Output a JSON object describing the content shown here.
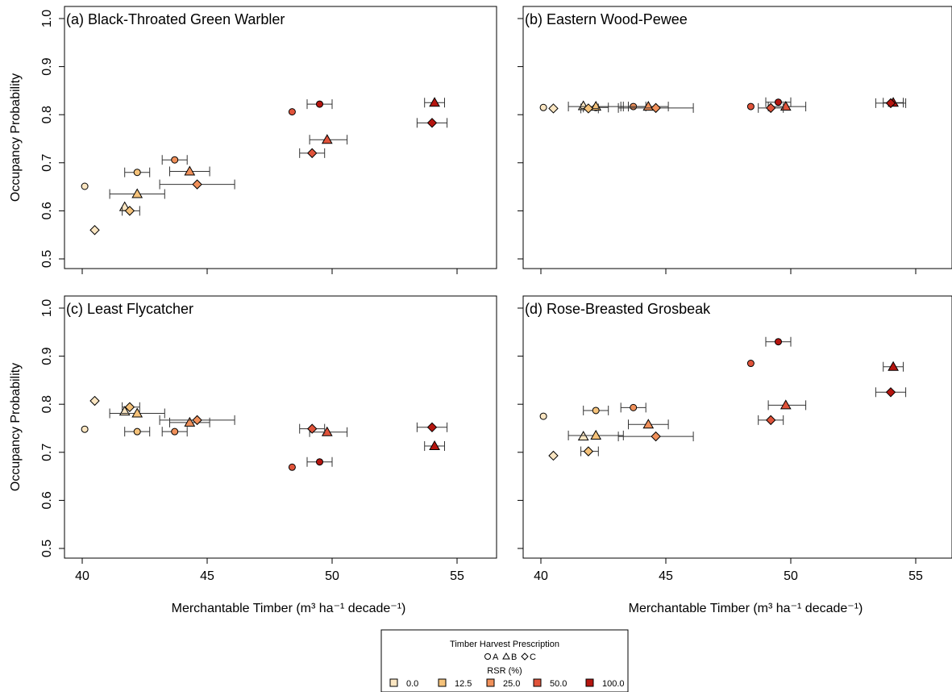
{
  "colors": {
    "rsr_0": "#fbe6c2",
    "rsr_12_5": "#f5c27a",
    "rsr_25": "#f0905a",
    "rsr_50": "#e0533a",
    "rsr_100": "#b5150f"
  },
  "legend": {
    "title": "Timber Harvest Prescription",
    "shapes": [
      {
        "symbol": "circle",
        "label": "A"
      },
      {
        "symbol": "triangle",
        "label": "B"
      },
      {
        "symbol": "diamond",
        "label": "C"
      }
    ],
    "rsr_title": "RSR (%)",
    "rsr": [
      {
        "label": "0.0",
        "color": "#fbe6c2"
      },
      {
        "label": "12.5",
        "color": "#f5c27a"
      },
      {
        "label": "25.0",
        "color": "#f0905a"
      },
      {
        "label": "50.0",
        "color": "#e0533a"
      },
      {
        "label": "100.0",
        "color": "#b5150f"
      }
    ]
  },
  "chart_data": [
    {
      "type": "scatter",
      "title": "(a) Black-Throated Green Warbler",
      "xlabel": "Merchantable Timber (m³ ha⁻¹ decade⁻¹)",
      "ylabel": "Occupancy Probability",
      "xlim": [
        39,
        56.5
      ],
      "ylim": [
        0.5,
        1.0
      ],
      "xticks": [
        "40",
        "45",
        "50",
        "55"
      ],
      "yticks": [
        "0.5",
        "0.6",
        "0.7",
        "0.8",
        "0.9",
        "1.0"
      ],
      "points": [
        {
          "presc": "A",
          "rsr": "0.0",
          "x": 40.1,
          "y": 0.651,
          "xlo": null,
          "xhi": null
        },
        {
          "presc": "A",
          "rsr": "12.5",
          "x": 42.2,
          "y": 0.68,
          "xlo": 41.7,
          "xhi": 42.7
        },
        {
          "presc": "A",
          "rsr": "25.0",
          "x": 43.7,
          "y": 0.706,
          "xlo": 43.2,
          "xhi": 44.2
        },
        {
          "presc": "A",
          "rsr": "50.0",
          "x": 48.4,
          "y": 0.806,
          "xlo": null,
          "xhi": null
        },
        {
          "presc": "A",
          "rsr": "100.0",
          "x": 49.5,
          "y": 0.822,
          "xlo": 49.0,
          "xhi": 50.0
        },
        {
          "presc": "B",
          "rsr": "0.0",
          "x": 41.7,
          "y": 0.608,
          "xlo": null,
          "xhi": null
        },
        {
          "presc": "B",
          "rsr": "12.5",
          "x": 42.2,
          "y": 0.635,
          "xlo": 41.1,
          "xhi": 43.3
        },
        {
          "presc": "B",
          "rsr": "25.0",
          "x": 44.3,
          "y": 0.682,
          "xlo": 43.5,
          "xhi": 45.1
        },
        {
          "presc": "B",
          "rsr": "50.0",
          "x": 49.8,
          "y": 0.748,
          "xlo": 49.1,
          "xhi": 50.6
        },
        {
          "presc": "B",
          "rsr": "100.0",
          "x": 54.1,
          "y": 0.825,
          "xlo": 53.7,
          "xhi": 54.5
        },
        {
          "presc": "C",
          "rsr": "0.0",
          "x": 40.5,
          "y": 0.56,
          "xlo": null,
          "xhi": null
        },
        {
          "presc": "C",
          "rsr": "12.5",
          "x": 41.9,
          "y": 0.6,
          "xlo": 41.6,
          "xhi": 42.3
        },
        {
          "presc": "C",
          "rsr": "25.0",
          "x": 44.6,
          "y": 0.655,
          "xlo": 43.1,
          "xhi": 46.1
        },
        {
          "presc": "C",
          "rsr": "50.0",
          "x": 49.2,
          "y": 0.72,
          "xlo": 48.7,
          "xhi": 49.7
        },
        {
          "presc": "C",
          "rsr": "100.0",
          "x": 54.0,
          "y": 0.783,
          "xlo": 53.4,
          "xhi": 54.6
        }
      ]
    },
    {
      "type": "scatter",
      "title": "(b) Eastern Wood-Pewee",
      "xlabel": "Merchantable Timber (m³ ha⁻¹ decade⁻¹)",
      "ylabel": "",
      "xlim": [
        39,
        56.5
      ],
      "ylim": [
        0.5,
        1.0
      ],
      "xticks": [
        "40",
        "45",
        "50",
        "55"
      ],
      "yticks": [],
      "points": [
        {
          "presc": "A",
          "rsr": "0.0",
          "x": 40.1,
          "y": 0.815,
          "xlo": null,
          "xhi": null
        },
        {
          "presc": "A",
          "rsr": "12.5",
          "x": 42.2,
          "y": 0.815,
          "xlo": 41.7,
          "xhi": 42.7
        },
        {
          "presc": "A",
          "rsr": "25.0",
          "x": 43.7,
          "y": 0.817,
          "xlo": 43.2,
          "xhi": 44.2
        },
        {
          "presc": "A",
          "rsr": "50.0",
          "x": 48.4,
          "y": 0.817,
          "xlo": null,
          "xhi": null
        },
        {
          "presc": "A",
          "rsr": "100.0",
          "x": 49.5,
          "y": 0.826,
          "xlo": 49.0,
          "xhi": 50.0
        },
        {
          "presc": "B",
          "rsr": "0.0",
          "x": 41.7,
          "y": 0.818,
          "xlo": null,
          "xhi": null
        },
        {
          "presc": "B",
          "rsr": "12.5",
          "x": 42.2,
          "y": 0.817,
          "xlo": 41.1,
          "xhi": 43.3
        },
        {
          "presc": "B",
          "rsr": "25.0",
          "x": 44.3,
          "y": 0.817,
          "xlo": 43.5,
          "xhi": 45.1
        },
        {
          "presc": "B",
          "rsr": "50.0",
          "x": 49.8,
          "y": 0.817,
          "xlo": 49.1,
          "xhi": 50.6
        },
        {
          "presc": "B",
          "rsr": "100.0",
          "x": 54.1,
          "y": 0.825,
          "xlo": 53.7,
          "xhi": 54.5
        },
        {
          "presc": "C",
          "rsr": "0.0",
          "x": 40.5,
          "y": 0.813,
          "xlo": null,
          "xhi": null
        },
        {
          "presc": "C",
          "rsr": "12.5",
          "x": 41.9,
          "y": 0.813,
          "xlo": 41.6,
          "xhi": 42.3
        },
        {
          "presc": "C",
          "rsr": "25.0",
          "x": 44.6,
          "y": 0.814,
          "xlo": 43.1,
          "xhi": 46.1
        },
        {
          "presc": "C",
          "rsr": "50.0",
          "x": 49.2,
          "y": 0.814,
          "xlo": 48.7,
          "xhi": 49.7
        },
        {
          "presc": "C",
          "rsr": "100.0",
          "x": 54.0,
          "y": 0.824,
          "xlo": 53.4,
          "xhi": 54.6
        }
      ]
    },
    {
      "type": "scatter",
      "title": "(c) Least Flycatcher",
      "xlabel": "Merchantable Timber (m³ ha⁻¹ decade⁻¹)",
      "ylabel": "Occupancy Probability",
      "xlim": [
        39,
        56.5
      ],
      "ylim": [
        0.5,
        1.0
      ],
      "xticks": [
        "40",
        "45",
        "50",
        "55"
      ],
      "yticks": [
        "0.5",
        "0.6",
        "0.7",
        "0.8",
        "0.9",
        "1.0"
      ],
      "points": [
        {
          "presc": "A",
          "rsr": "0.0",
          "x": 40.1,
          "y": 0.748,
          "xlo": null,
          "xhi": null
        },
        {
          "presc": "A",
          "rsr": "12.5",
          "x": 42.2,
          "y": 0.743,
          "xlo": 41.7,
          "xhi": 42.7
        },
        {
          "presc": "A",
          "rsr": "25.0",
          "x": 43.7,
          "y": 0.743,
          "xlo": 43.2,
          "xhi": 44.2
        },
        {
          "presc": "A",
          "rsr": "50.0",
          "x": 48.4,
          "y": 0.669,
          "xlo": null,
          "xhi": null
        },
        {
          "presc": "A",
          "rsr": "100.0",
          "x": 49.5,
          "y": 0.68,
          "xlo": 49.0,
          "xhi": 50.0
        },
        {
          "presc": "B",
          "rsr": "0.0",
          "x": 41.7,
          "y": 0.785,
          "xlo": null,
          "xhi": null
        },
        {
          "presc": "B",
          "rsr": "12.5",
          "x": 42.2,
          "y": 0.781,
          "xlo": 41.1,
          "xhi": 43.3
        },
        {
          "presc": "B",
          "rsr": "25.0",
          "x": 44.3,
          "y": 0.762,
          "xlo": 43.5,
          "xhi": 45.1
        },
        {
          "presc": "B",
          "rsr": "50.0",
          "x": 49.8,
          "y": 0.742,
          "xlo": 49.1,
          "xhi": 50.6
        },
        {
          "presc": "B",
          "rsr": "100.0",
          "x": 54.1,
          "y": 0.713,
          "xlo": 53.7,
          "xhi": 54.5
        },
        {
          "presc": "C",
          "rsr": "0.0",
          "x": 40.5,
          "y": 0.807,
          "xlo": null,
          "xhi": null
        },
        {
          "presc": "C",
          "rsr": "12.5",
          "x": 41.9,
          "y": 0.794,
          "xlo": 41.6,
          "xhi": 42.3
        },
        {
          "presc": "C",
          "rsr": "25.0",
          "x": 44.6,
          "y": 0.767,
          "xlo": 43.1,
          "xhi": 46.1
        },
        {
          "presc": "C",
          "rsr": "50.0",
          "x": 49.2,
          "y": 0.749,
          "xlo": 48.7,
          "xhi": 49.7
        },
        {
          "presc": "C",
          "rsr": "100.0",
          "x": 54.0,
          "y": 0.752,
          "xlo": 53.4,
          "xhi": 54.6
        }
      ]
    },
    {
      "type": "scatter",
      "title": "(d) Rose-Breasted Grosbeak",
      "xlabel": "Merchantable Timber (m³ ha⁻¹ decade⁻¹)",
      "ylabel": "",
      "xlim": [
        39,
        56.5
      ],
      "ylim": [
        0.5,
        1.0
      ],
      "xticks": [
        "40",
        "45",
        "50",
        "55"
      ],
      "yticks": [],
      "points": [
        {
          "presc": "A",
          "rsr": "0.0",
          "x": 40.1,
          "y": 0.775,
          "xlo": null,
          "xhi": null
        },
        {
          "presc": "A",
          "rsr": "12.5",
          "x": 42.2,
          "y": 0.787,
          "xlo": 41.7,
          "xhi": 42.7
        },
        {
          "presc": "A",
          "rsr": "25.0",
          "x": 43.7,
          "y": 0.793,
          "xlo": 43.2,
          "xhi": 44.2
        },
        {
          "presc": "A",
          "rsr": "50.0",
          "x": 48.4,
          "y": 0.885,
          "xlo": null,
          "xhi": null
        },
        {
          "presc": "A",
          "rsr": "100.0",
          "x": 49.5,
          "y": 0.93,
          "xlo": 49.0,
          "xhi": 50.0
        },
        {
          "presc": "B",
          "rsr": "0.0",
          "x": 41.7,
          "y": 0.733,
          "xlo": null,
          "xhi": null
        },
        {
          "presc": "B",
          "rsr": "12.5",
          "x": 42.2,
          "y": 0.735,
          "xlo": 41.1,
          "xhi": 43.3
        },
        {
          "presc": "B",
          "rsr": "25.0",
          "x": 44.3,
          "y": 0.758,
          "xlo": 43.5,
          "xhi": 45.1
        },
        {
          "presc": "B",
          "rsr": "50.0",
          "x": 49.8,
          "y": 0.798,
          "xlo": 49.1,
          "xhi": 50.6
        },
        {
          "presc": "B",
          "rsr": "100.0",
          "x": 54.1,
          "y": 0.878,
          "xlo": 53.7,
          "xhi": 54.5
        },
        {
          "presc": "C",
          "rsr": "0.0",
          "x": 40.5,
          "y": 0.693,
          "xlo": null,
          "xhi": null
        },
        {
          "presc": "C",
          "rsr": "12.5",
          "x": 41.9,
          "y": 0.702,
          "xlo": 41.6,
          "xhi": 42.3
        },
        {
          "presc": "C",
          "rsr": "25.0",
          "x": 44.6,
          "y": 0.733,
          "xlo": 43.1,
          "xhi": 46.1
        },
        {
          "presc": "C",
          "rsr": "50.0",
          "x": 49.2,
          "y": 0.767,
          "xlo": 48.7,
          "xhi": 49.7
        },
        {
          "presc": "C",
          "rsr": "100.0",
          "x": 54.0,
          "y": 0.825,
          "xlo": 53.4,
          "xhi": 54.6
        }
      ]
    }
  ]
}
